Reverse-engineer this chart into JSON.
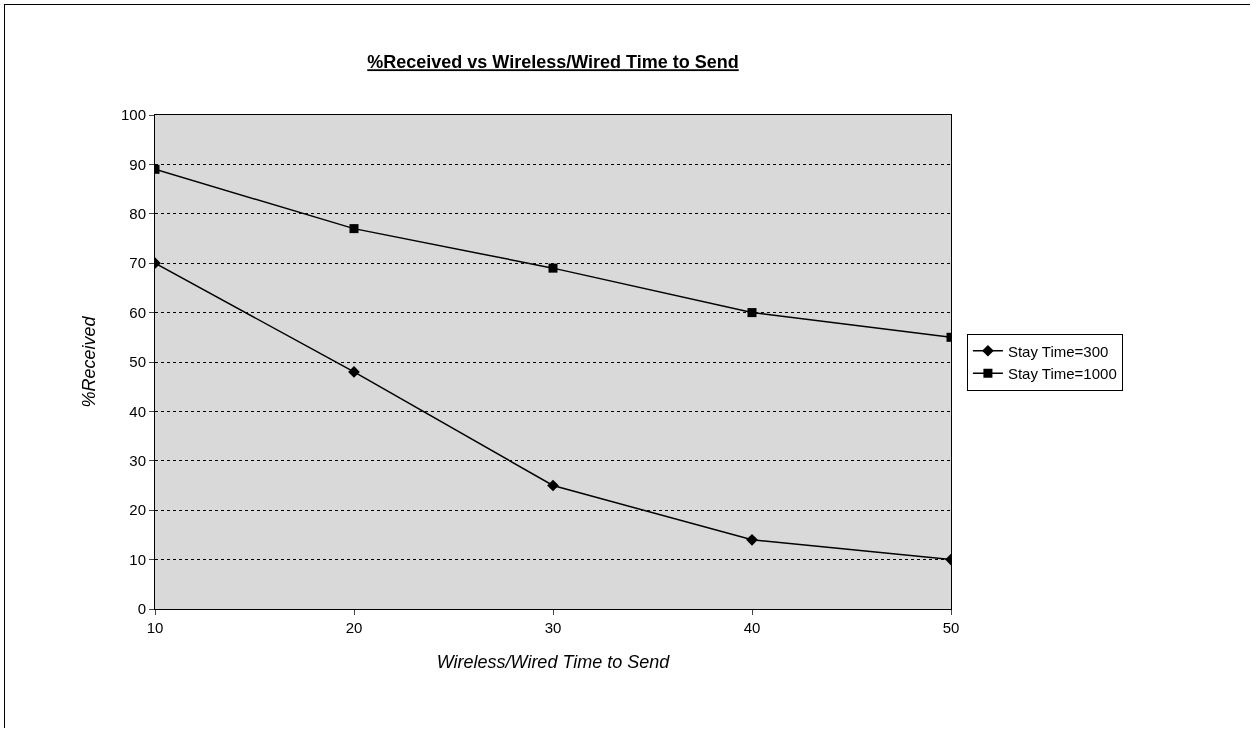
{
  "chart_data": {
    "type": "line",
    "title": "%Received vs Wireless/Wired Time to Send",
    "xlabel": "Wireless/Wired Time to Send",
    "ylabel": "%Received",
    "x": [
      10,
      20,
      30,
      40,
      50
    ],
    "series": [
      {
        "name": "Stay Time=300",
        "color": "#000000",
        "marker": "diamond",
        "values": [
          70,
          48,
          25,
          14,
          10
        ]
      },
      {
        "name": "Stay Time=1000",
        "color": "#000000",
        "marker": "square",
        "values": [
          89,
          77,
          69,
          60,
          55
        ]
      }
    ],
    "xlim": [
      10,
      50
    ],
    "xticks": [
      10,
      20,
      30,
      40,
      50
    ],
    "ylim": [
      0,
      100
    ],
    "yticks": [
      0,
      10,
      20,
      30,
      40,
      50,
      60,
      70,
      80,
      90,
      100
    ],
    "grid": "y",
    "legend": "right",
    "line_style": "solid"
  }
}
